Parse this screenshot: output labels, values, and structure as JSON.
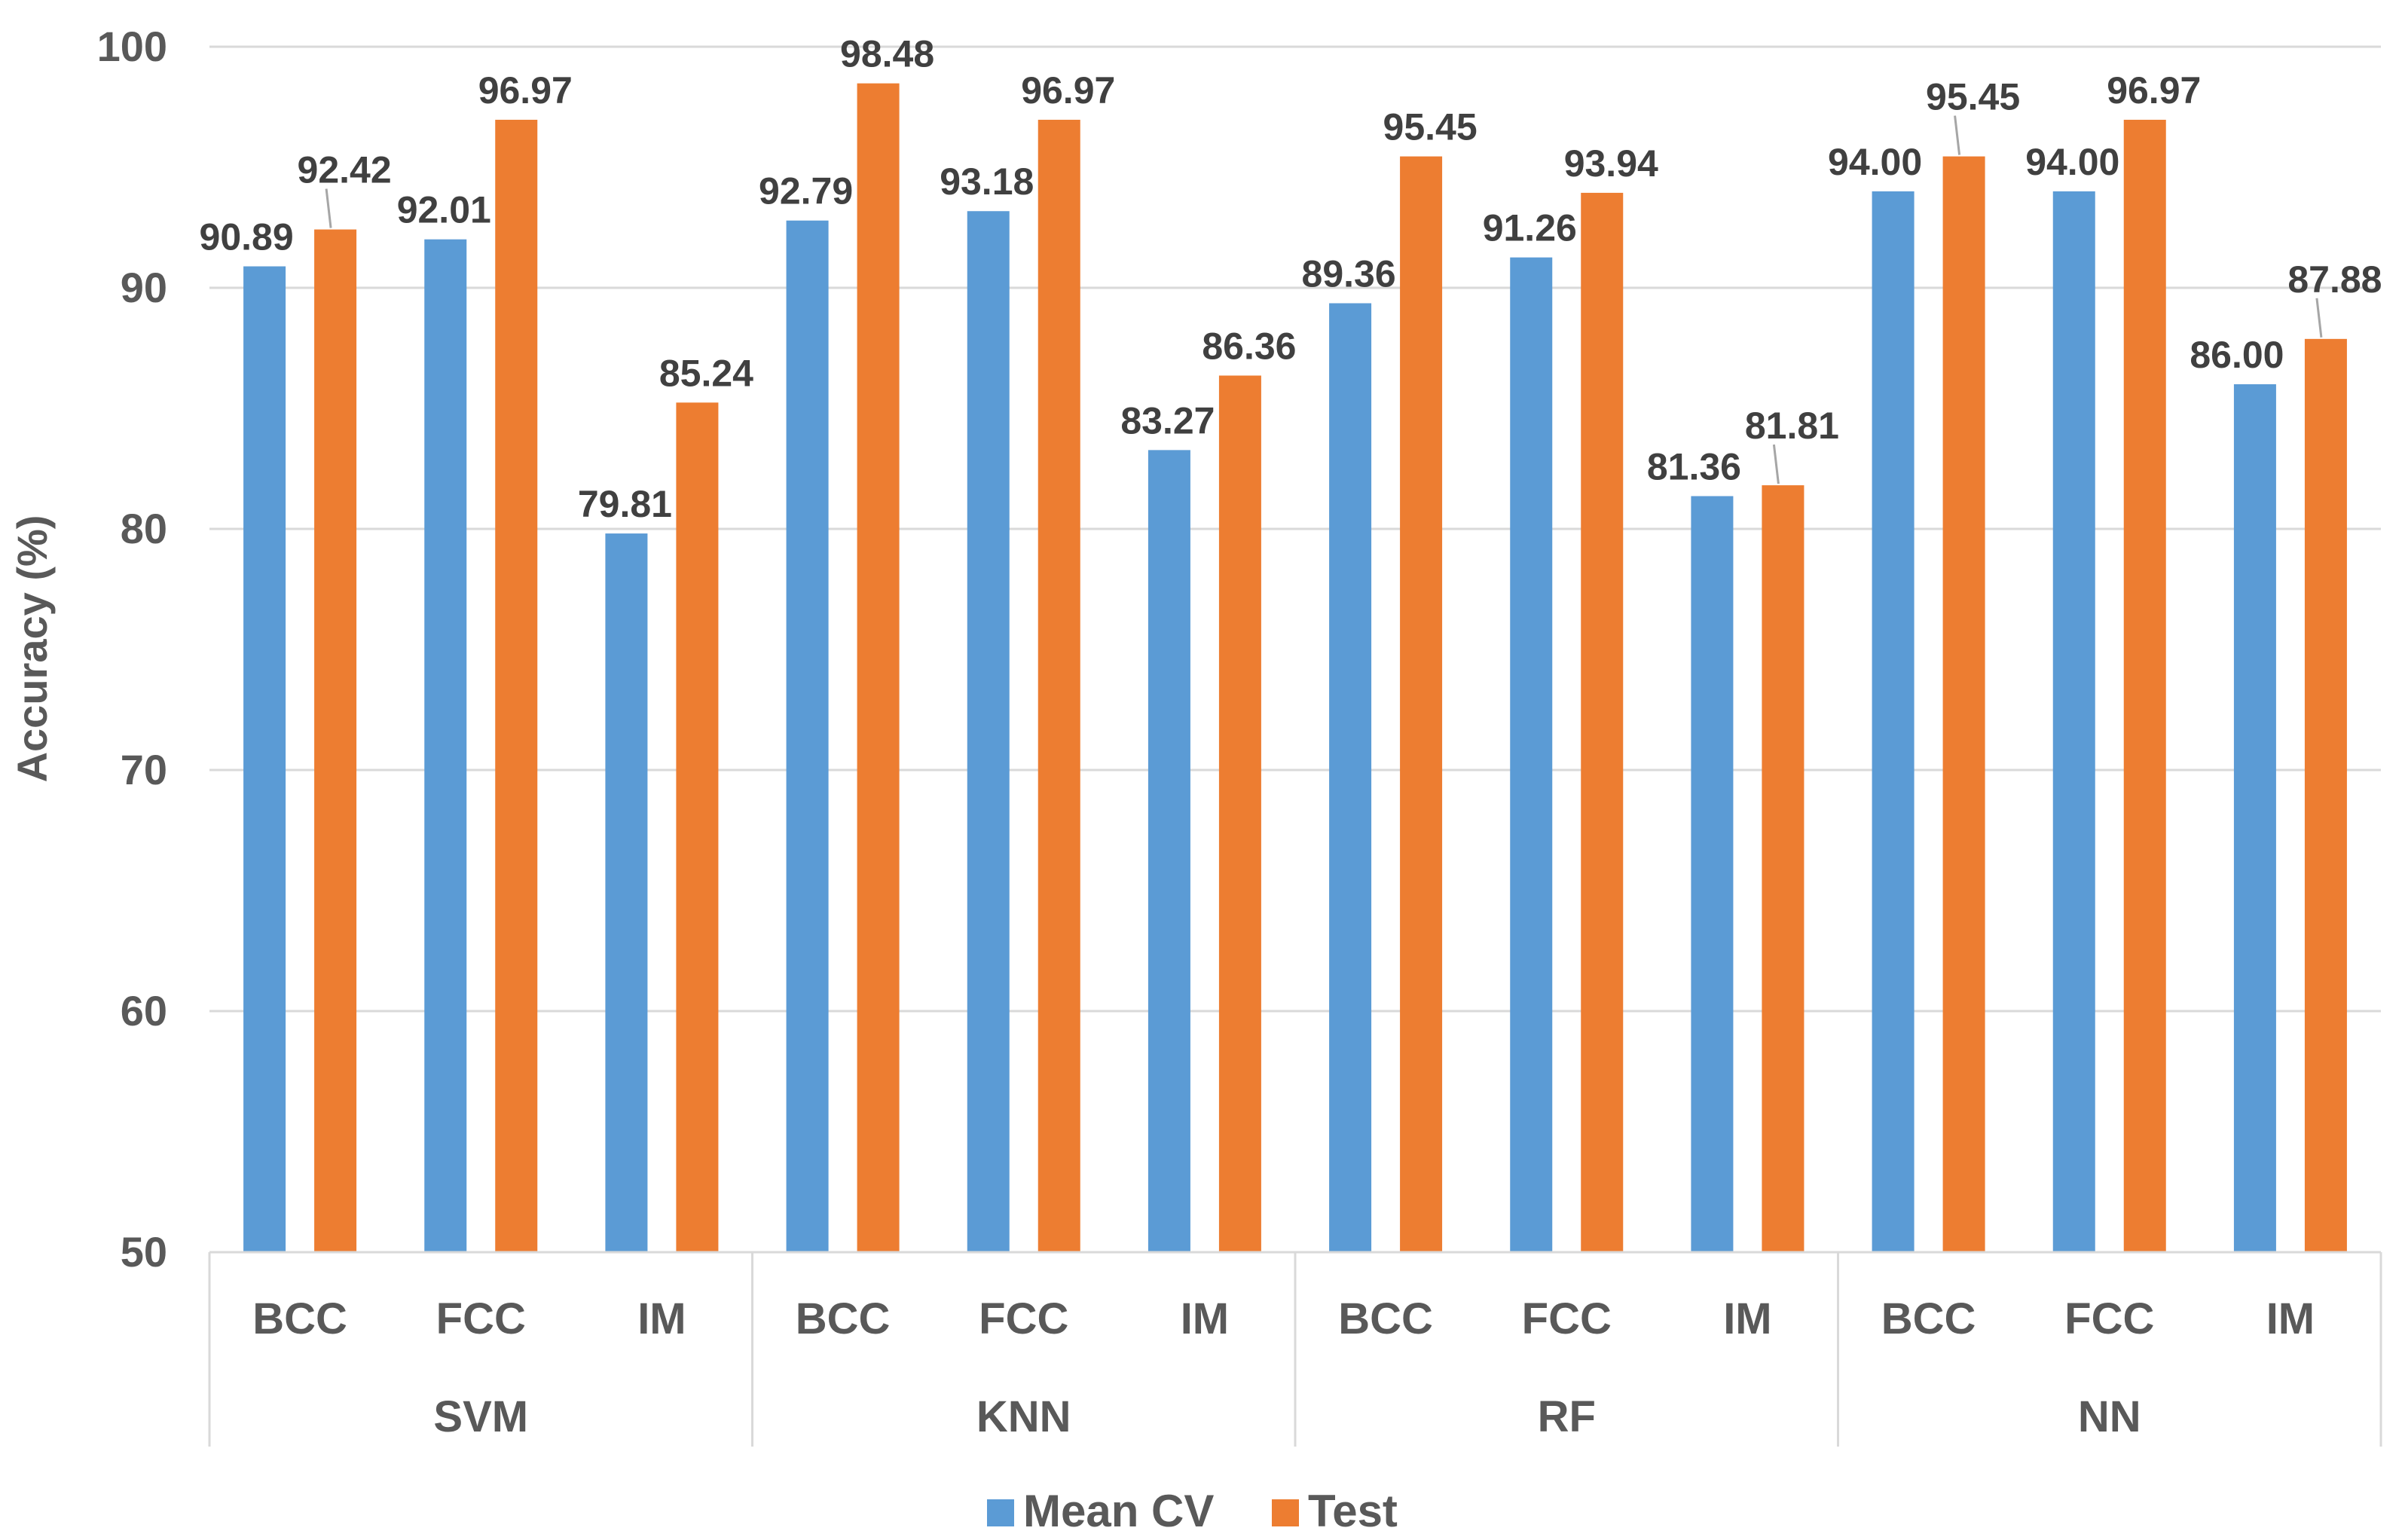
{
  "chart_data": {
    "type": "bar",
    "title": "",
    "xlabel": "",
    "ylabel": "Accuracy (%)",
    "ylim": [
      50,
      100
    ],
    "yticks": [
      50,
      60,
      70,
      80,
      90,
      100
    ],
    "grid": true,
    "legend_position": "bottom",
    "groups": [
      "SVM",
      "KNN",
      "RF",
      "NN"
    ],
    "categories": [
      "BCC",
      "FCC",
      "IM",
      "BCC",
      "FCC",
      "IM",
      "BCC",
      "FCC",
      "IM",
      "BCC",
      "FCC",
      "IM"
    ],
    "series": [
      {
        "name": "Mean CV",
        "color": "#5b9bd5",
        "values": [
          90.89,
          92.01,
          79.81,
          92.79,
          93.18,
          83.27,
          89.36,
          91.26,
          81.36,
          94.0,
          94.0,
          86.0
        ],
        "labels": [
          "90.89",
          "92.01",
          "79.81",
          "92.79",
          "93.18",
          "83.27",
          "89.36",
          "91.26",
          "81.36",
          "94.00",
          "94.00",
          "86.00"
        ]
      },
      {
        "name": "Test",
        "color": "#ed7d31",
        "values": [
          92.42,
          96.97,
          85.24,
          98.48,
          96.97,
          86.36,
          95.45,
          93.94,
          81.81,
          95.45,
          96.97,
          87.88
        ],
        "labels": [
          "92.42",
          "96.97",
          "85.24",
          "98.48",
          "96.97",
          "86.36",
          "95.45",
          "93.94",
          "81.81",
          "95.45",
          "96.97",
          "87.88"
        ]
      }
    ]
  }
}
